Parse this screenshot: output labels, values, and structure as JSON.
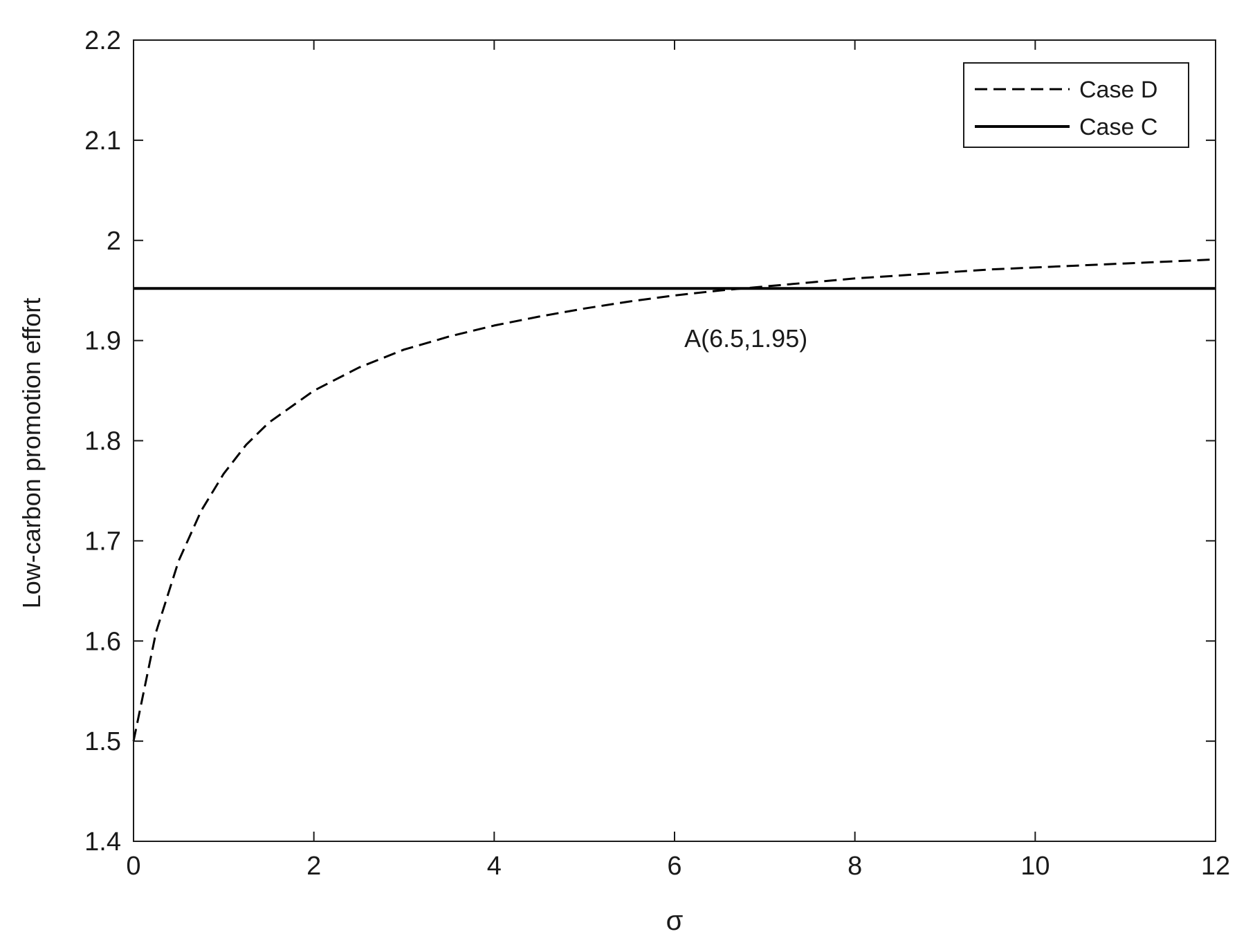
{
  "chart_data": {
    "type": "line",
    "title": "",
    "xlabel": "σ",
    "ylabel": "Low-carbon promotion effort",
    "xlim": [
      0,
      12
    ],
    "ylim": [
      1.4,
      2.2
    ],
    "x_ticks": [
      0,
      2,
      4,
      6,
      8,
      10,
      12
    ],
    "y_ticks": [
      1.4,
      1.5,
      1.6,
      1.7,
      1.8,
      1.9,
      2.0,
      2.1,
      2.2
    ],
    "x_tick_labels": [
      "0",
      "2",
      "4",
      "6",
      "8",
      "10",
      "12"
    ],
    "y_tick_labels": [
      "1.4",
      "1.5",
      "1.6",
      "1.7",
      "1.8",
      "1.9",
      "2",
      "2.1",
      "2.2"
    ],
    "grid": false,
    "legend_position": "top-right",
    "series": [
      {
        "name": "Case D",
        "style": "dashed",
        "color": "#000000",
        "x": [
          0,
          0.25,
          0.5,
          0.75,
          1,
          1.25,
          1.5,
          2,
          2.5,
          3,
          3.5,
          4,
          4.5,
          5,
          5.5,
          6,
          6.5,
          7,
          7.5,
          8,
          8.5,
          9,
          9.5,
          10,
          10.5,
          11,
          11.5,
          12
        ],
        "y": [
          1.5,
          1.609,
          1.68,
          1.73,
          1.767,
          1.796,
          1.818,
          1.85,
          1.873,
          1.891,
          1.904,
          1.915,
          1.924,
          1.932,
          1.939,
          1.945,
          1.95,
          1.954,
          1.958,
          1.962,
          1.965,
          1.968,
          1.971,
          1.973,
          1.975,
          1.977,
          1.979,
          1.981
        ]
      },
      {
        "name": "Case C",
        "style": "solid",
        "color": "#000000",
        "x": [
          0,
          12
        ],
        "y": [
          1.952,
          1.952
        ]
      }
    ],
    "annotations": [
      {
        "text": "A(6.5,1.95)",
        "x": 6.5,
        "y": 1.95
      }
    ]
  }
}
